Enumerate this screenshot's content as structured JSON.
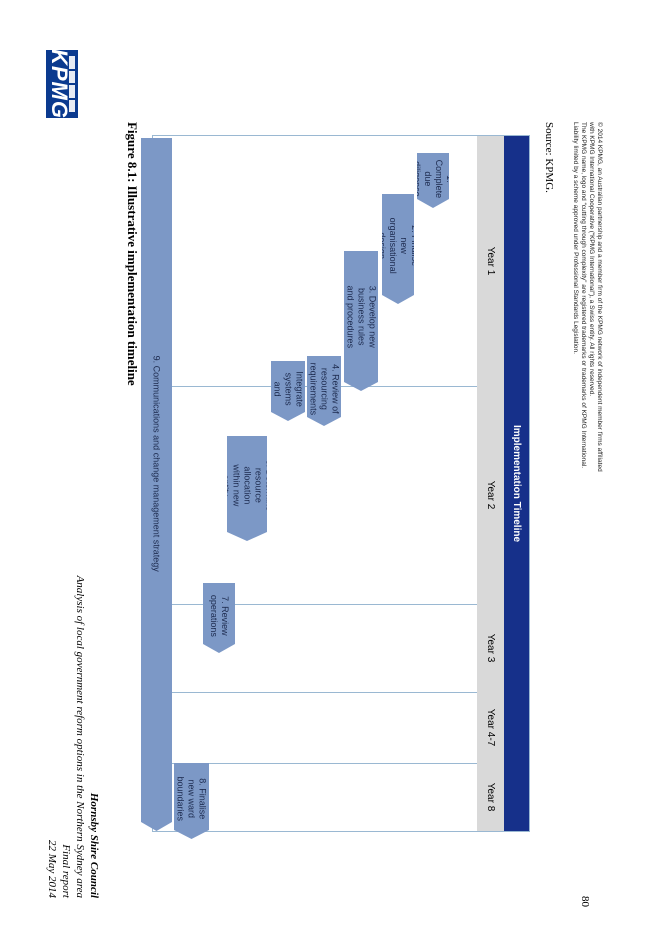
{
  "logo": {
    "text": "KPMG"
  },
  "header": {
    "council": "Hornsby Shire Council",
    "subtitle": "Analysis of local government reform options in the Northern Sydney area",
    "report": "Final report",
    "date": "22 May 2014"
  },
  "figure_title": "Figure 8.1: Illustrative implementation timeline",
  "timeline": {
    "title": "Implementation Timeline",
    "years": [
      "Year 1",
      "Year 2",
      "Year 3",
      "Year 4-7",
      "Year 8"
    ],
    "tasks": [
      {
        "label": "1. Complete due diligence"
      },
      {
        "label": "2. Finalise new organisational design"
      },
      {
        "label": "3. Develop new business rules and procedures"
      },
      {
        "label": "4. Review of resourcing requirements"
      },
      {
        "label": "5. Integrate systems and processes"
      },
      {
        "label": "6. Determine resource allocation within new entity"
      },
      {
        "label": "7. Review operations"
      },
      {
        "label": "8. Finalise new ward boundaries"
      },
      {
        "label": "9. Communications and change management strategy"
      }
    ],
    "colors": {
      "header": "#16308a",
      "arrow": "#7c98c6",
      "years_band": "#d9d9d9"
    }
  },
  "source": "Source: KPMG.",
  "footnote": [
    "© 2014 KPMG, an Australian partnership and a member firm of the KPMG network of independent member firms affiliated",
    "with KPMG International Cooperative (“KPMG International”), a Swiss entity. All rights reserved.",
    "The KPMG name, logo and “cutting through complexity” are registered trademarks or trademarks of KPMG International.",
    "Liability limited by a scheme approved under Professional Standards Legislation."
  ],
  "page_number": "80"
}
